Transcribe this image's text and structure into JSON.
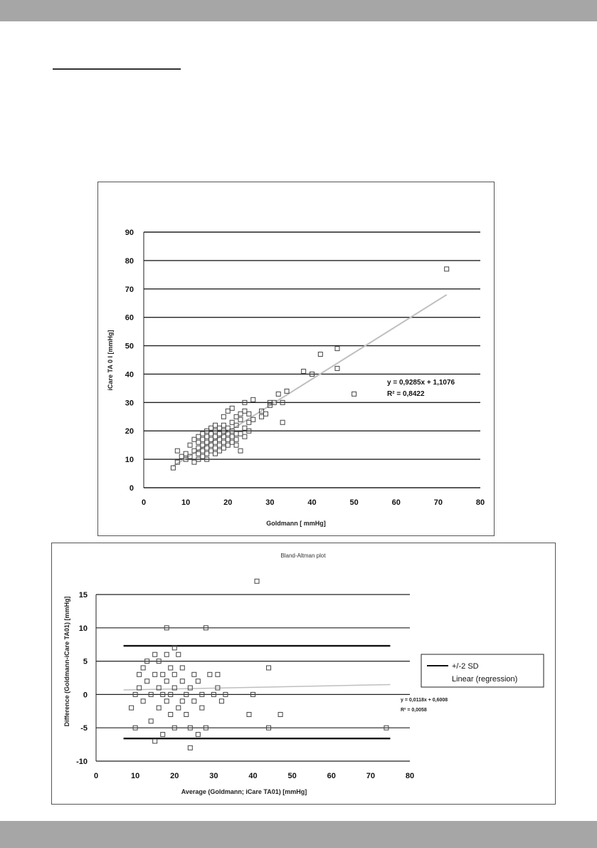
{
  "page": {
    "colors": {
      "band": "#a6a6a6",
      "grid": "#222222",
      "marker": "#444444",
      "trend": "#bfbfbf"
    }
  },
  "chart_data": [
    {
      "type": "scatter",
      "title": "",
      "xlabel": "Goldmann [ mmHg]",
      "ylabel": "iCare TA 0 I [mmHg]",
      "xlim": [
        0,
        80
      ],
      "ylim": [
        0,
        90
      ],
      "xticks": [
        "0",
        "10",
        "20",
        "30",
        "40",
        "50",
        "60",
        "70",
        "80"
      ],
      "yticks": [
        "0",
        "10",
        "20",
        "30",
        "40",
        "50",
        "60",
        "70",
        "80",
        "90"
      ],
      "grid": true,
      "equation": "y = 0,9285x + 1,1076",
      "r_squared": "R² = 0,8422",
      "trendline": {
        "slope": 0.9285,
        "intercept": 1.1076,
        "x_range": [
          7,
          72
        ]
      },
      "points": [
        [
          7,
          7
        ],
        [
          8,
          9
        ],
        [
          8,
          13
        ],
        [
          9,
          11
        ],
        [
          10,
          10
        ],
        [
          10,
          12
        ],
        [
          11,
          11
        ],
        [
          11,
          15
        ],
        [
          12,
          9
        ],
        [
          12,
          13
        ],
        [
          12,
          17
        ],
        [
          13,
          10
        ],
        [
          13,
          12
        ],
        [
          13,
          14
        ],
        [
          13,
          16
        ],
        [
          13,
          18
        ],
        [
          14,
          11
        ],
        [
          14,
          13
        ],
        [
          14,
          15
        ],
        [
          14,
          17
        ],
        [
          14,
          19
        ],
        [
          15,
          10
        ],
        [
          15,
          12
        ],
        [
          15,
          14
        ],
        [
          15,
          16
        ],
        [
          15,
          18
        ],
        [
          15,
          20
        ],
        [
          16,
          13
        ],
        [
          16,
          15
        ],
        [
          16,
          17
        ],
        [
          16,
          19
        ],
        [
          16,
          21
        ],
        [
          17,
          12
        ],
        [
          17,
          14
        ],
        [
          17,
          16
        ],
        [
          17,
          18
        ],
        [
          17,
          20
        ],
        [
          17,
          22
        ],
        [
          18,
          13
        ],
        [
          18,
          15
        ],
        [
          18,
          17
        ],
        [
          18,
          19
        ],
        [
          18,
          21
        ],
        [
          19,
          14
        ],
        [
          19,
          16
        ],
        [
          19,
          18
        ],
        [
          19,
          20
        ],
        [
          19,
          22
        ],
        [
          19,
          25
        ],
        [
          20,
          15
        ],
        [
          20,
          17
        ],
        [
          20,
          19
        ],
        [
          20,
          21
        ],
        [
          20,
          27
        ],
        [
          21,
          16
        ],
        [
          21,
          18
        ],
        [
          21,
          20
        ],
        [
          21,
          23
        ],
        [
          21,
          28
        ],
        [
          22,
          15
        ],
        [
          22,
          17
        ],
        [
          22,
          19
        ],
        [
          22,
          22
        ],
        [
          22,
          25
        ],
        [
          23,
          13
        ],
        [
          23,
          19
        ],
        [
          23,
          24
        ],
        [
          23,
          26
        ],
        [
          24,
          18
        ],
        [
          24,
          21
        ],
        [
          24,
          27
        ],
        [
          24,
          30
        ],
        [
          25,
          20
        ],
        [
          25,
          23
        ],
        [
          25,
          26
        ],
        [
          26,
          24
        ],
        [
          26,
          31
        ],
        [
          28,
          25
        ],
        [
          28,
          27
        ],
        [
          29,
          26
        ],
        [
          30,
          29
        ],
        [
          30,
          30
        ],
        [
          31,
          30
        ],
        [
          32,
          33
        ],
        [
          33,
          23
        ],
        [
          33,
          30
        ],
        [
          34,
          34
        ],
        [
          38,
          41
        ],
        [
          40,
          40
        ],
        [
          42,
          47
        ],
        [
          46,
          42
        ],
        [
          46,
          49
        ],
        [
          50,
          33
        ],
        [
          72,
          77
        ]
      ]
    },
    {
      "type": "scatter",
      "title": "Bland-Altman plot",
      "xlabel": "Average (Goldmann; iCare TA01) [mmHg]",
      "ylabel": "Difference (Goldmann-iCare TA01) [mmHg]",
      "xlim": [
        0,
        80
      ],
      "ylim": [
        -10,
        15
      ],
      "xticks": [
        "0",
        "10",
        "20",
        "30",
        "40",
        "50",
        "60",
        "70",
        "80"
      ],
      "yticks": [
        "-10",
        "-5",
        "0",
        "5",
        "10",
        "15"
      ],
      "grid": true,
      "equation": "y = 0,0118x + 0,6008",
      "r_squared": "R² = 0,0058",
      "limits": {
        "upper": 7.3,
        "lower": -6.6,
        "x_range": [
          7,
          75
        ]
      },
      "trendline": {
        "slope": 0.0118,
        "intercept": 0.6008,
        "x_range": [
          7,
          75
        ]
      },
      "legend": {
        "position": "right",
        "entries": [
          "+/-2 SD",
          "Linear (regression)"
        ]
      },
      "points": [
        [
          9,
          -2
        ],
        [
          10,
          0
        ],
        [
          10,
          -5
        ],
        [
          11,
          1
        ],
        [
          11,
          3
        ],
        [
          12,
          4
        ],
        [
          12,
          -1
        ],
        [
          13,
          5
        ],
        [
          13,
          2
        ],
        [
          14,
          0
        ],
        [
          14,
          -4
        ],
        [
          15,
          -7
        ],
        [
          15,
          3
        ],
        [
          15,
          6
        ],
        [
          16,
          1
        ],
        [
          16,
          -2
        ],
        [
          16,
          5
        ],
        [
          17,
          -6
        ],
        [
          17,
          0
        ],
        [
          17,
          3
        ],
        [
          18,
          10
        ],
        [
          18,
          2
        ],
        [
          18,
          -1
        ],
        [
          18,
          6
        ],
        [
          19,
          4
        ],
        [
          19,
          -3
        ],
        [
          19,
          0
        ],
        [
          20,
          7
        ],
        [
          20,
          1
        ],
        [
          20,
          -5
        ],
        [
          20,
          3
        ],
        [
          21,
          -2
        ],
        [
          21,
          6
        ],
        [
          22,
          -1
        ],
        [
          22,
          4
        ],
        [
          22,
          2
        ],
        [
          23,
          -3
        ],
        [
          23,
          0
        ],
        [
          24,
          1
        ],
        [
          24,
          -8
        ],
        [
          24,
          -5
        ],
        [
          25,
          3
        ],
        [
          25,
          -1
        ],
        [
          26,
          -6
        ],
        [
          26,
          2
        ],
        [
          27,
          0
        ],
        [
          27,
          -2
        ],
        [
          28,
          10
        ],
        [
          28,
          -5
        ],
        [
          29,
          3
        ],
        [
          30,
          0
        ],
        [
          31,
          1
        ],
        [
          31,
          3
        ],
        [
          32,
          -1
        ],
        [
          33,
          0
        ],
        [
          39,
          -3
        ],
        [
          40,
          0
        ],
        [
          41,
          17
        ],
        [
          44,
          4
        ],
        [
          44,
          -5
        ],
        [
          47,
          -3
        ],
        [
          74,
          -5
        ]
      ]
    }
  ]
}
